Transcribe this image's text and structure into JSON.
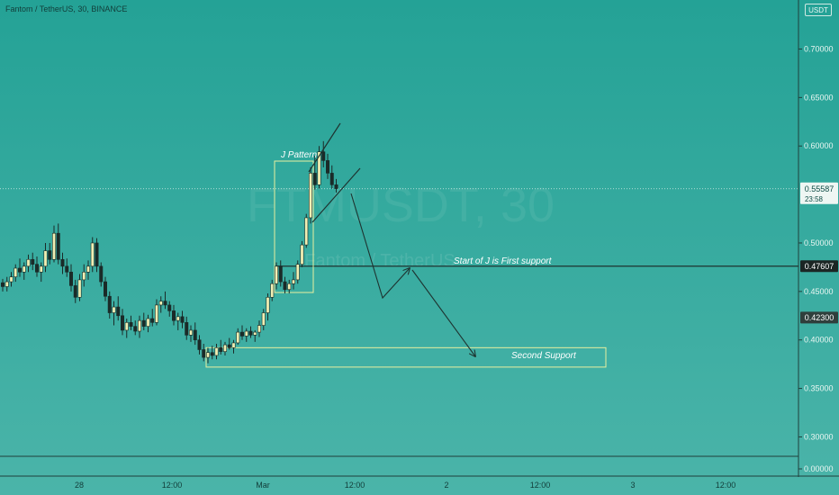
{
  "header": {
    "symbol_text": "Fantom / TetherUS, 30, BINANCE"
  },
  "unit_badge": "USDT",
  "watermark": {
    "main": "FTMUSDT, 30",
    "sub": "Fantom / TetherUS"
  },
  "price_axis": {
    "ticks": [
      "0.70000",
      "0.65000",
      "0.60000",
      "0.50000",
      "0.45000",
      "0.40000",
      "0.35000",
      "0.30000",
      "0.00000"
    ],
    "last_price": {
      "label": "0.55587",
      "countdown": "23:58"
    },
    "support_label": "0.47607",
    "marker_label": "0.42300"
  },
  "time_axis": {
    "labels": [
      "28",
      "12:00",
      "Mar",
      "12:00",
      "2",
      "12:00",
      "3",
      "12:00"
    ]
  },
  "annotations": {
    "pattern_label": "J Pattern",
    "first_support_label": "Start of J is First support",
    "second_support_label": "Second Support"
  },
  "colors": {
    "background_top": "#24a296",
    "background_bottom": "#4bb4a9",
    "candle": "#f1efb3",
    "wick": "#1a2b28",
    "support_line": "#1e3330",
    "box_border": "#e8ef9f"
  },
  "chart_data": {
    "type": "candlestick",
    "symbol": "FTMUSDT",
    "interval": "30",
    "exchange": "BINANCE",
    "ylim": [
      0.28,
      0.745
    ],
    "last_price": 0.55587,
    "first_support": 0.47607,
    "marker_price": 0.423,
    "second_support_zone": [
      0.372,
      0.392
    ],
    "series": [
      {
        "values": [
          [
            0.459,
            0.463,
            0.45,
            0.455
          ],
          [
            0.455,
            0.465,
            0.45,
            0.46
          ],
          [
            0.46,
            0.47,
            0.455,
            0.465
          ],
          [
            0.465,
            0.478,
            0.46,
            0.474
          ],
          [
            0.474,
            0.484,
            0.465,
            0.47
          ],
          [
            0.47,
            0.48,
            0.462,
            0.476
          ],
          [
            0.476,
            0.488,
            0.47,
            0.483
          ],
          [
            0.483,
            0.49,
            0.472,
            0.478
          ],
          [
            0.478,
            0.486,
            0.465,
            0.47
          ],
          [
            0.47,
            0.48,
            0.46,
            0.476
          ],
          [
            0.476,
            0.5,
            0.47,
            0.492
          ],
          [
            0.492,
            0.5,
            0.478,
            0.483
          ],
          [
            0.483,
            0.518,
            0.48,
            0.51
          ],
          [
            0.51,
            0.52,
            0.478,
            0.483
          ],
          [
            0.483,
            0.49,
            0.468,
            0.476
          ],
          [
            0.476,
            0.484,
            0.465,
            0.47
          ],
          [
            0.47,
            0.478,
            0.45,
            0.456
          ],
          [
            0.456,
            0.462,
            0.438,
            0.444
          ],
          [
            0.444,
            0.468,
            0.44,
            0.462
          ],
          [
            0.462,
            0.478,
            0.455,
            0.47
          ],
          [
            0.47,
            0.482,
            0.462,
            0.476
          ],
          [
            0.476,
            0.506,
            0.47,
            0.5
          ],
          [
            0.5,
            0.505,
            0.47,
            0.476
          ],
          [
            0.476,
            0.48,
            0.455,
            0.46
          ],
          [
            0.46,
            0.465,
            0.44,
            0.445
          ],
          [
            0.445,
            0.45,
            0.422,
            0.428
          ],
          [
            0.428,
            0.44,
            0.415,
            0.434
          ],
          [
            0.434,
            0.445,
            0.42,
            0.425
          ],
          [
            0.425,
            0.432,
            0.405,
            0.41
          ],
          [
            0.41,
            0.422,
            0.402,
            0.418
          ],
          [
            0.418,
            0.425,
            0.41,
            0.414
          ],
          [
            0.414,
            0.42,
            0.405,
            0.409
          ],
          [
            0.409,
            0.425,
            0.402,
            0.42
          ],
          [
            0.42,
            0.428,
            0.41,
            0.414
          ],
          [
            0.414,
            0.426,
            0.408,
            0.422
          ],
          [
            0.422,
            0.432,
            0.414,
            0.418
          ],
          [
            0.418,
            0.442,
            0.415,
            0.436
          ],
          [
            0.436,
            0.445,
            0.428,
            0.44
          ],
          [
            0.44,
            0.45,
            0.432,
            0.436
          ],
          [
            0.436,
            0.44,
            0.424,
            0.43
          ],
          [
            0.43,
            0.436,
            0.415,
            0.42
          ],
          [
            0.42,
            0.428,
            0.41,
            0.424
          ],
          [
            0.424,
            0.43,
            0.412,
            0.418
          ],
          [
            0.418,
            0.424,
            0.4,
            0.405
          ],
          [
            0.405,
            0.415,
            0.398,
            0.41
          ],
          [
            0.41,
            0.418,
            0.395,
            0.4
          ],
          [
            0.4,
            0.405,
            0.385,
            0.39
          ],
          [
            0.39,
            0.396,
            0.378,
            0.382
          ],
          [
            0.382,
            0.392,
            0.376,
            0.387
          ],
          [
            0.387,
            0.394,
            0.38,
            0.384
          ],
          [
            0.384,
            0.396,
            0.38,
            0.392
          ],
          [
            0.392,
            0.4,
            0.385,
            0.388
          ],
          [
            0.388,
            0.398,
            0.384,
            0.395
          ],
          [
            0.395,
            0.402,
            0.39,
            0.392
          ],
          [
            0.392,
            0.4,
            0.386,
            0.397
          ],
          [
            0.397,
            0.412,
            0.395,
            0.408
          ],
          [
            0.408,
            0.415,
            0.4,
            0.404
          ],
          [
            0.404,
            0.412,
            0.398,
            0.409
          ],
          [
            0.409,
            0.414,
            0.402,
            0.405
          ],
          [
            0.405,
            0.41,
            0.398,
            0.408
          ],
          [
            0.408,
            0.42,
            0.403,
            0.415
          ],
          [
            0.415,
            0.432,
            0.41,
            0.428
          ],
          [
            0.428,
            0.448,
            0.42,
            0.444
          ],
          [
            0.444,
            0.462,
            0.44,
            0.458
          ],
          [
            0.458,
            0.48,
            0.452,
            0.476
          ],
          [
            0.476,
            0.482,
            0.455,
            0.46
          ],
          [
            0.46,
            0.465,
            0.448,
            0.452
          ],
          [
            0.452,
            0.462,
            0.448,
            0.458
          ],
          [
            0.458,
            0.47,
            0.452,
            0.462
          ],
          [
            0.462,
            0.482,
            0.458,
            0.478
          ],
          [
            0.478,
            0.502,
            0.475,
            0.498
          ],
          [
            0.498,
            0.53,
            0.495,
            0.526
          ],
          [
            0.526,
            0.578,
            0.52,
            0.572
          ],
          [
            0.572,
            0.59,
            0.555,
            0.56
          ],
          [
            0.56,
            0.6,
            0.556,
            0.594
          ],
          [
            0.594,
            0.605,
            0.578,
            0.585
          ],
          [
            0.585,
            0.592,
            0.566,
            0.572
          ],
          [
            0.572,
            0.58,
            0.556,
            0.56
          ],
          [
            0.56,
            0.566,
            0.552,
            0.556
          ]
        ]
      }
    ]
  }
}
